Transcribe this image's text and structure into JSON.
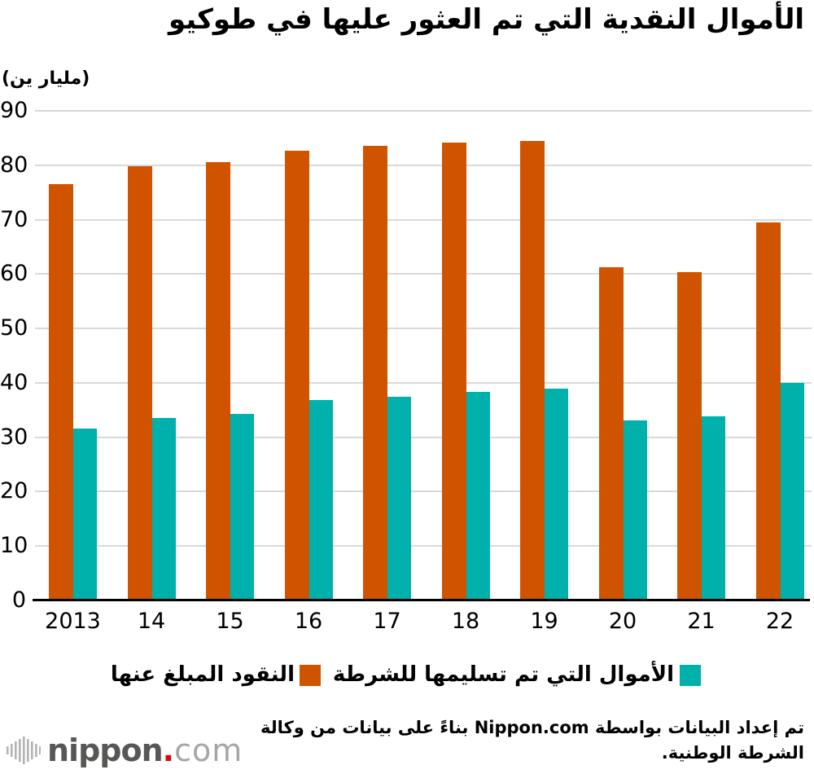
{
  "title": "الأموال النقدية التي تم العثور عليها في طوكيو",
  "unit_label": "(مليار ين)",
  "chart_data": {
    "type": "bar",
    "direction": "rtl",
    "title": "الأموال النقدية التي تم العثور عليها في طوكيو",
    "ylabel": "(مليار ين)",
    "categories": [
      "2013",
      "14",
      "15",
      "16",
      "17",
      "18",
      "19",
      "20",
      "21",
      "22"
    ],
    "series": [
      {
        "name": "النقود المبلغ عنها",
        "color": "#d05400",
        "values": [
          76.5,
          79.8,
          80.5,
          82.7,
          83.5,
          84.2,
          84.5,
          61.2,
          60.3,
          69.5
        ]
      },
      {
        "name": "الأموال التي تم تسليمها للشرطة",
        "color": "#00b1ab",
        "values": [
          31.6,
          33.5,
          34.3,
          36.8,
          37.5,
          38.4,
          38.9,
          33.1,
          33.9,
          40.0
        ]
      }
    ],
    "ylim": [
      0,
      90
    ],
    "yticks": [
      0,
      10,
      20,
      30,
      40,
      50,
      60,
      70,
      80,
      90
    ],
    "grid": true,
    "legend_position": "bottom"
  },
  "legend": {
    "reported_label": "النقود المبلغ عنها",
    "handed_label": "الأموال التي تم تسليمها للشرطة"
  },
  "footer": {
    "line1": "تم إعداد البيانات بواسطة Nippon.com بناءً على بيانات من وكالة",
    "line2": "الشرطة الوطنية."
  },
  "logo": {
    "name": "nippon",
    "dot": ".",
    "tld": "com"
  }
}
